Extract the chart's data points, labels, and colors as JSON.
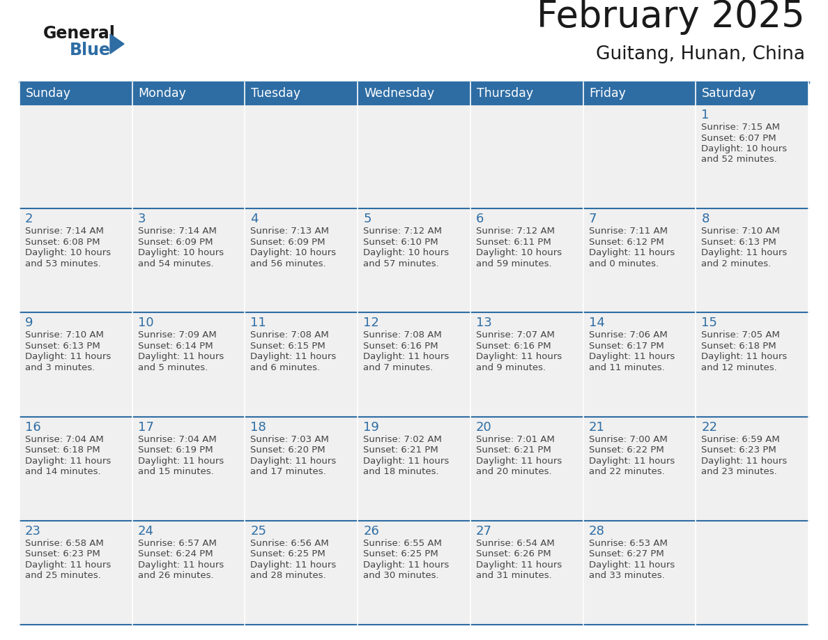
{
  "title": "February 2025",
  "subtitle": "Guitang, Hunan, China",
  "header_color": "#2E6DA4",
  "header_text_color": "#FFFFFF",
  "cell_bg_color": "#F0F0F0",
  "line_color": "#2E6DA4",
  "day_number_color": "#2E6DA4",
  "info_text_color": "#444444",
  "day_headers": [
    "Sunday",
    "Monday",
    "Tuesday",
    "Wednesday",
    "Thursday",
    "Friday",
    "Saturday"
  ],
  "logo_text1": "General",
  "logo_text2": "Blue",
  "logo_color1": "#1a1a1a",
  "logo_color2": "#2E6DA4",
  "days": [
    {
      "day": 1,
      "col": 6,
      "row": 0,
      "sunrise": "7:15 AM",
      "sunset": "6:07 PM",
      "daylight_hours": 10,
      "daylight_minutes": 52
    },
    {
      "day": 2,
      "col": 0,
      "row": 1,
      "sunrise": "7:14 AM",
      "sunset": "6:08 PM",
      "daylight_hours": 10,
      "daylight_minutes": 53
    },
    {
      "day": 3,
      "col": 1,
      "row": 1,
      "sunrise": "7:14 AM",
      "sunset": "6:09 PM",
      "daylight_hours": 10,
      "daylight_minutes": 54
    },
    {
      "day": 4,
      "col": 2,
      "row": 1,
      "sunrise": "7:13 AM",
      "sunset": "6:09 PM",
      "daylight_hours": 10,
      "daylight_minutes": 56
    },
    {
      "day": 5,
      "col": 3,
      "row": 1,
      "sunrise": "7:12 AM",
      "sunset": "6:10 PM",
      "daylight_hours": 10,
      "daylight_minutes": 57
    },
    {
      "day": 6,
      "col": 4,
      "row": 1,
      "sunrise": "7:12 AM",
      "sunset": "6:11 PM",
      "daylight_hours": 10,
      "daylight_minutes": 59
    },
    {
      "day": 7,
      "col": 5,
      "row": 1,
      "sunrise": "7:11 AM",
      "sunset": "6:12 PM",
      "daylight_hours": 11,
      "daylight_minutes": 0
    },
    {
      "day": 8,
      "col": 6,
      "row": 1,
      "sunrise": "7:10 AM",
      "sunset": "6:13 PM",
      "daylight_hours": 11,
      "daylight_minutes": 2
    },
    {
      "day": 9,
      "col": 0,
      "row": 2,
      "sunrise": "7:10 AM",
      "sunset": "6:13 PM",
      "daylight_hours": 11,
      "daylight_minutes": 3
    },
    {
      "day": 10,
      "col": 1,
      "row": 2,
      "sunrise": "7:09 AM",
      "sunset": "6:14 PM",
      "daylight_hours": 11,
      "daylight_minutes": 5
    },
    {
      "day": 11,
      "col": 2,
      "row": 2,
      "sunrise": "7:08 AM",
      "sunset": "6:15 PM",
      "daylight_hours": 11,
      "daylight_minutes": 6
    },
    {
      "day": 12,
      "col": 3,
      "row": 2,
      "sunrise": "7:08 AM",
      "sunset": "6:16 PM",
      "daylight_hours": 11,
      "daylight_minutes": 7
    },
    {
      "day": 13,
      "col": 4,
      "row": 2,
      "sunrise": "7:07 AM",
      "sunset": "6:16 PM",
      "daylight_hours": 11,
      "daylight_minutes": 9
    },
    {
      "day": 14,
      "col": 5,
      "row": 2,
      "sunrise": "7:06 AM",
      "sunset": "6:17 PM",
      "daylight_hours": 11,
      "daylight_minutes": 11
    },
    {
      "day": 15,
      "col": 6,
      "row": 2,
      "sunrise": "7:05 AM",
      "sunset": "6:18 PM",
      "daylight_hours": 11,
      "daylight_minutes": 12
    },
    {
      "day": 16,
      "col": 0,
      "row": 3,
      "sunrise": "7:04 AM",
      "sunset": "6:18 PM",
      "daylight_hours": 11,
      "daylight_minutes": 14
    },
    {
      "day": 17,
      "col": 1,
      "row": 3,
      "sunrise": "7:04 AM",
      "sunset": "6:19 PM",
      "daylight_hours": 11,
      "daylight_minutes": 15
    },
    {
      "day": 18,
      "col": 2,
      "row": 3,
      "sunrise": "7:03 AM",
      "sunset": "6:20 PM",
      "daylight_hours": 11,
      "daylight_minutes": 17
    },
    {
      "day": 19,
      "col": 3,
      "row": 3,
      "sunrise": "7:02 AM",
      "sunset": "6:21 PM",
      "daylight_hours": 11,
      "daylight_minutes": 18
    },
    {
      "day": 20,
      "col": 4,
      "row": 3,
      "sunrise": "7:01 AM",
      "sunset": "6:21 PM",
      "daylight_hours": 11,
      "daylight_minutes": 20
    },
    {
      "day": 21,
      "col": 5,
      "row": 3,
      "sunrise": "7:00 AM",
      "sunset": "6:22 PM",
      "daylight_hours": 11,
      "daylight_minutes": 22
    },
    {
      "day": 22,
      "col": 6,
      "row": 3,
      "sunrise": "6:59 AM",
      "sunset": "6:23 PM",
      "daylight_hours": 11,
      "daylight_minutes": 23
    },
    {
      "day": 23,
      "col": 0,
      "row": 4,
      "sunrise": "6:58 AM",
      "sunset": "6:23 PM",
      "daylight_hours": 11,
      "daylight_minutes": 25
    },
    {
      "day": 24,
      "col": 1,
      "row": 4,
      "sunrise": "6:57 AM",
      "sunset": "6:24 PM",
      "daylight_hours": 11,
      "daylight_minutes": 26
    },
    {
      "day": 25,
      "col": 2,
      "row": 4,
      "sunrise": "6:56 AM",
      "sunset": "6:25 PM",
      "daylight_hours": 11,
      "daylight_minutes": 28
    },
    {
      "day": 26,
      "col": 3,
      "row": 4,
      "sunrise": "6:55 AM",
      "sunset": "6:25 PM",
      "daylight_hours": 11,
      "daylight_minutes": 30
    },
    {
      "day": 27,
      "col": 4,
      "row": 4,
      "sunrise": "6:54 AM",
      "sunset": "6:26 PM",
      "daylight_hours": 11,
      "daylight_minutes": 31
    },
    {
      "day": 28,
      "col": 5,
      "row": 4,
      "sunrise": "6:53 AM",
      "sunset": "6:27 PM",
      "daylight_hours": 11,
      "daylight_minutes": 33
    }
  ]
}
